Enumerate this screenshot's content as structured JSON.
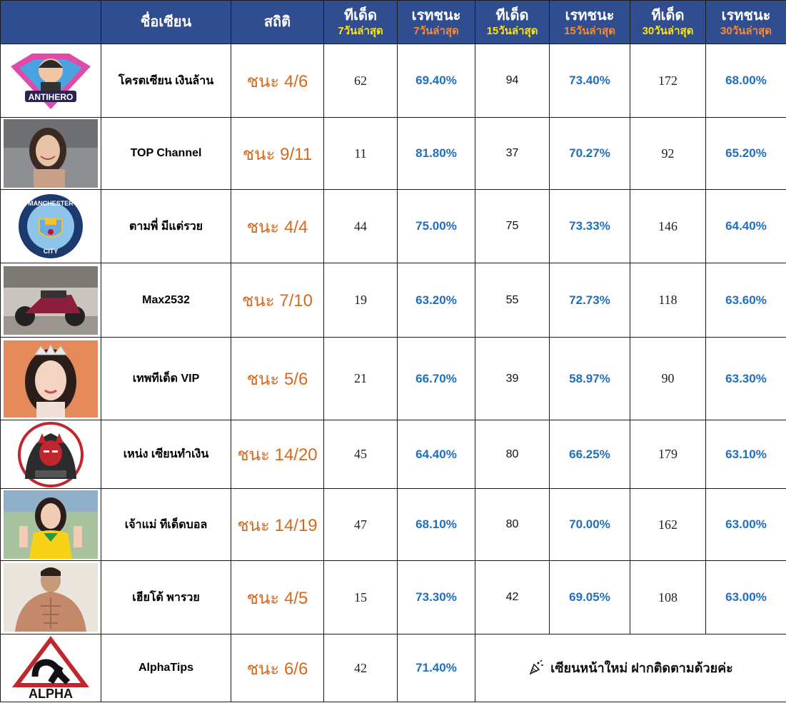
{
  "header": {
    "name": "ชื่อเซียน",
    "stat": "สถิติ",
    "tips7": {
      "main": "ทีเด็ด",
      "sub": "7วันล่าสุด"
    },
    "rate7": {
      "main": "เรทชนะ",
      "sub": "7วันล่าสุด"
    },
    "tips15": {
      "main": "ทีเด็ด",
      "sub": "15วันล่าสุด"
    },
    "rate15": {
      "main": "เรทชนะ",
      "sub": "15วันล่าสุด"
    },
    "tips30": {
      "main": "ทีเด็ด",
      "sub": "30วันล่าสุด"
    },
    "rate30": {
      "main": "เรทชนะ",
      "sub": "30วันล่าสุด"
    }
  },
  "colors": {
    "header_bg": "#2f4d8f",
    "sub_yellow": "#ffe600",
    "sub_orange": "#ff8a2a",
    "stat_orange": "#d56a1d",
    "rate_blue": "#1f6fbf"
  },
  "rows": [
    {
      "avatar": "antihero-logo",
      "avatar_text": "ANTIHERO",
      "name": "โครตเซียน เงินล้าน",
      "stat": "ชนะ 4/6",
      "tips7": "62",
      "rate7": "69.40%",
      "tips15": "94",
      "rate15": "73.40%",
      "tips30": "172",
      "rate30": "68.00%"
    },
    {
      "avatar": "woman-photo",
      "name": "TOP Channel",
      "stat": "ชนะ 9/11",
      "tips7": "11",
      "rate7": "81.80%",
      "tips15": "37",
      "rate15": "70.27%",
      "tips30": "92",
      "rate30": "65.20%"
    },
    {
      "avatar": "manchester-city-crest",
      "avatar_text_top": "MANCHESTER",
      "avatar_text_bottom": "CITY",
      "name": "ตามพี่ มีแต่รวย",
      "stat": "ชนะ 4/4",
      "tips7": "44",
      "rate7": "75.00%",
      "tips15": "75",
      "rate15": "73.33%",
      "tips30": "146",
      "rate30": "64.40%"
    },
    {
      "avatar": "motorcycle-photo",
      "name": "Max2532",
      "stat": "ชนะ 7/10",
      "tips7": "19",
      "rate7": "63.20%",
      "tips15": "55",
      "rate15": "72.73%",
      "tips30": "118",
      "rate30": "63.60%"
    },
    {
      "avatar": "woman-crown-photo",
      "name": "เทพทีเด็ด VIP",
      "stat": "ชนะ 5/6",
      "tips7": "21",
      "rate7": "66.70%",
      "tips15": "39",
      "rate15": "58.97%",
      "tips30": "90",
      "rate30": "63.30%"
    },
    {
      "avatar": "hooded-oni-mascot",
      "name": "เหน่ง เซียนทำเงิน",
      "stat": "ชนะ 14/20",
      "tips7": "45",
      "rate7": "64.40%",
      "tips15": "80",
      "rate15": "66.25%",
      "tips30": "179",
      "rate30": "63.10%"
    },
    {
      "avatar": "woman-jersey-photo",
      "name": "เจ้าแม่ ทีเด็ดบอล",
      "stat": "ชนะ 14/19",
      "tips7": "47",
      "rate7": "68.10%",
      "tips15": "80",
      "rate15": "70.00%",
      "tips30": "162",
      "rate30": "63.00%"
    },
    {
      "avatar": "athlete-photo",
      "name": "เฮียโด้ พารวย",
      "stat": "ชนะ 4/5",
      "tips7": "15",
      "rate7": "73.30%",
      "tips15": "42",
      "rate15": "69.05%",
      "tips30": "108",
      "rate30": "63.00%"
    },
    {
      "avatar": "alpha-logo",
      "avatar_text": "ALPHA",
      "name": "AlphaTips",
      "stat": "ชนะ 6/6",
      "tips7": "42",
      "rate7": "71.40%",
      "notice": "เซียนหน้าใหม่ ฝากติดตามด้วยค่ะ",
      "notice_icon": "party-popper-icon"
    }
  ]
}
